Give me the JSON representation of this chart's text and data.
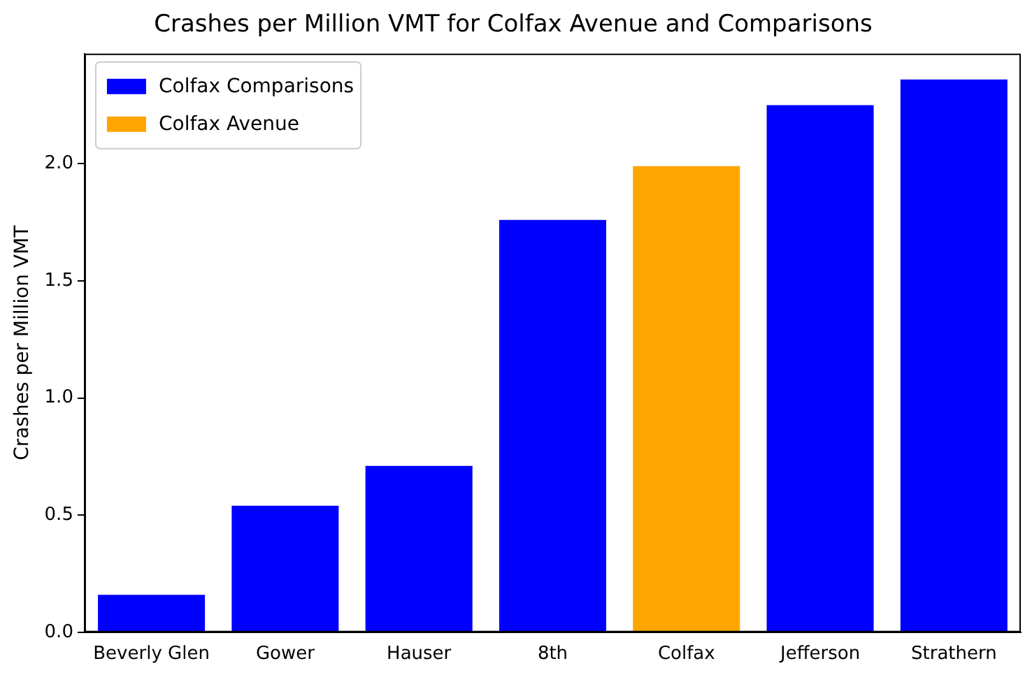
{
  "chart_data": {
    "type": "bar",
    "title": "Crashes per Million VMT for Colfax Avenue and Comparisons",
    "ylabel": "Crashes per Million VMT",
    "categories": [
      "Beverly Glen",
      "Gower",
      "Hauser",
      "8th",
      "Colfax",
      "Jefferson",
      "Strathern"
    ],
    "series": [
      {
        "name": "Colfax Comparisons",
        "color": "#0000ff",
        "values": [
          0.16,
          0.54,
          0.71,
          1.76,
          null,
          2.25,
          2.36
        ]
      },
      {
        "name": "Colfax Avenue",
        "color": "#ffa500",
        "values": [
          null,
          null,
          null,
          null,
          1.99,
          null,
          null
        ]
      }
    ],
    "ylim": [
      0,
      2.47
    ],
    "yticks": [
      {
        "value": 0,
        "label": "0.0"
      },
      0.5,
      {
        "value": 1,
        "label": "1.0"
      },
      1.5,
      {
        "value": 2,
        "label": "2.0"
      }
    ],
    "grid": false,
    "legend": "top left"
  }
}
